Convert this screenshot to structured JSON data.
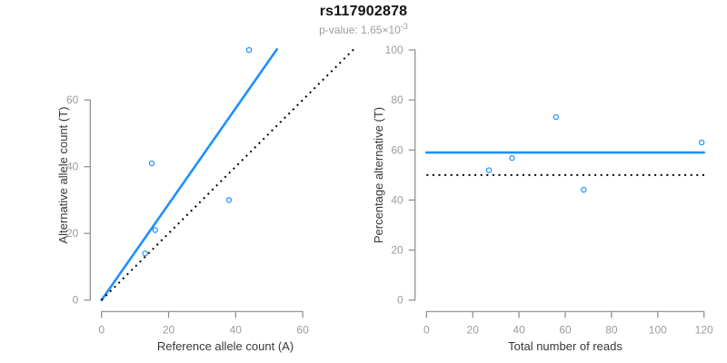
{
  "header": {
    "title": "rs117902878",
    "subtitle_prefix": "p-value: 1.65×10",
    "subtitle_exponent": "-3"
  },
  "colors": {
    "accent_blue": "#1E90FF",
    "reference_black": "#000000",
    "axis_gray": "#8a8a8a",
    "tick_label_gray": "#9c9c9c"
  },
  "chart_data": [
    {
      "id": "allele-count-scatter",
      "type": "scatter",
      "xlabel": "Reference allele count (A)",
      "ylabel": "Alternative allele count (T)",
      "x_ticks": [
        0,
        20,
        40,
        60
      ],
      "y_ticks": [
        0,
        20,
        40,
        60
      ],
      "x_range": [
        0,
        75.5
      ],
      "y_range": [
        0,
        75.5
      ],
      "grid": false,
      "marker": "open-circle",
      "points": [
        [
          13,
          14
        ],
        [
          15,
          41
        ],
        [
          16,
          21
        ],
        [
          38,
          30
        ],
        [
          44,
          75
        ]
      ],
      "lines": [
        {
          "name": "fit-line",
          "style": "solid",
          "color_key": "accent_blue",
          "x1": 0,
          "y1": 0,
          "x2": 52.3,
          "y2": 75.2
        },
        {
          "name": "identity-line",
          "style": "dotted",
          "color_key": "reference_black",
          "x1": 0,
          "y1": 0,
          "x2": 75.5,
          "y2": 75.5
        }
      ]
    },
    {
      "id": "percentage-vs-reads-scatter",
      "type": "scatter",
      "xlabel": "Total number of reads",
      "ylabel": "Percentage alternative (T)",
      "x_ticks": [
        0,
        20,
        40,
        60,
        80,
        100,
        120
      ],
      "y_ticks": [
        0,
        20,
        40,
        60,
        80,
        100
      ],
      "x_range": [
        0,
        121
      ],
      "y_range": [
        0,
        100
      ],
      "grid": false,
      "marker": "open-circle",
      "points": [
        [
          27,
          51.9
        ],
        [
          37,
          56.8
        ],
        [
          56,
          73.2
        ],
        [
          68,
          44.1
        ],
        [
          119,
          63
        ]
      ],
      "lines": [
        {
          "name": "mean-percentage-line",
          "style": "solid",
          "color_key": "accent_blue",
          "x1": 0,
          "y1": 59,
          "x2": 120,
          "y2": 59
        },
        {
          "name": "fifty-percent-line",
          "style": "dotted",
          "color_key": "reference_black",
          "x1": 0,
          "y1": 50,
          "x2": 121,
          "y2": 50
        }
      ]
    }
  ]
}
